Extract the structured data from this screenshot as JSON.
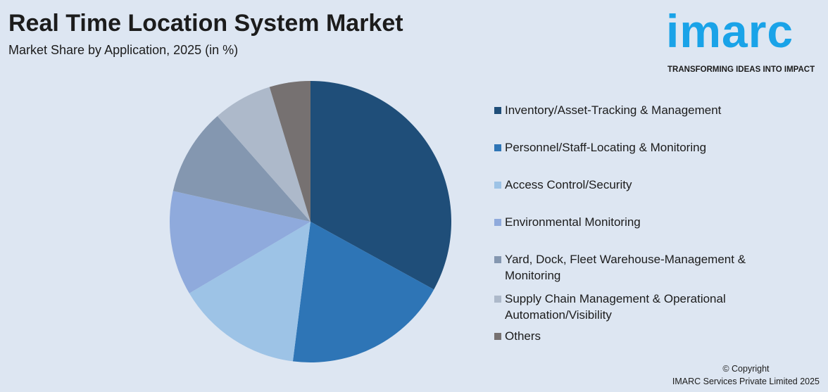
{
  "header": {
    "title": "Real Time Location System Market",
    "subtitle": "Market Share by Application, 2025 (in %)"
  },
  "logo": {
    "word": "imarc",
    "tagline": "TRANSFORMING IDEAS INTO IMPACT",
    "color": "#1aa3e8"
  },
  "footer": {
    "copyright_line1": "© Copyright",
    "copyright_line2": "IMARC Services Private Limited 2025"
  },
  "chart_data": {
    "type": "pie",
    "categories": [
      "Inventory/Asset-Tracking & Management",
      "Personnel/Staff-Locating & Monitoring",
      "Access Control/Security",
      "Environmental Monitoring",
      "Yard, Dock, Fleet Warehouse-Management & Monitoring",
      "Supply Chain Management & Operational Automation/Visibility",
      "Others"
    ],
    "values": [
      33.0,
      19.0,
      14.5,
      12.0,
      10.0,
      6.8,
      4.7
    ],
    "colors": [
      "#1f4e79",
      "#2e75b6",
      "#9dc3e6",
      "#8faadc",
      "#8497b0",
      "#adb9ca",
      "#767171"
    ],
    "start_angle_deg": 0,
    "direction": "clockwise",
    "legend_position": "right"
  }
}
